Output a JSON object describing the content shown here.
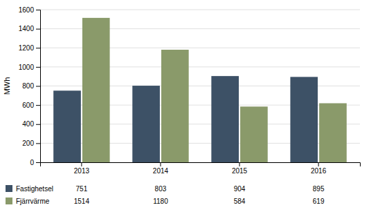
{
  "chart_data": {
    "type": "bar",
    "categories": [
      "2013",
      "2014",
      "2015",
      "2016"
    ],
    "series": [
      {
        "name": "Fastighetsel",
        "color": "#3d5166",
        "values": [
          751,
          803,
          904,
          895
        ]
      },
      {
        "name": "Fjärrvärme",
        "color": "#8a9a6a",
        "values": [
          1514,
          1180,
          584,
          619
        ]
      }
    ],
    "ylabel": "MWh",
    "ylim": [
      0,
      1600
    ],
    "yticks": [
      0,
      200,
      400,
      600,
      800,
      1000,
      1200,
      1400,
      1600
    ],
    "grid": true,
    "legend": "bottom",
    "data_labels": true
  }
}
